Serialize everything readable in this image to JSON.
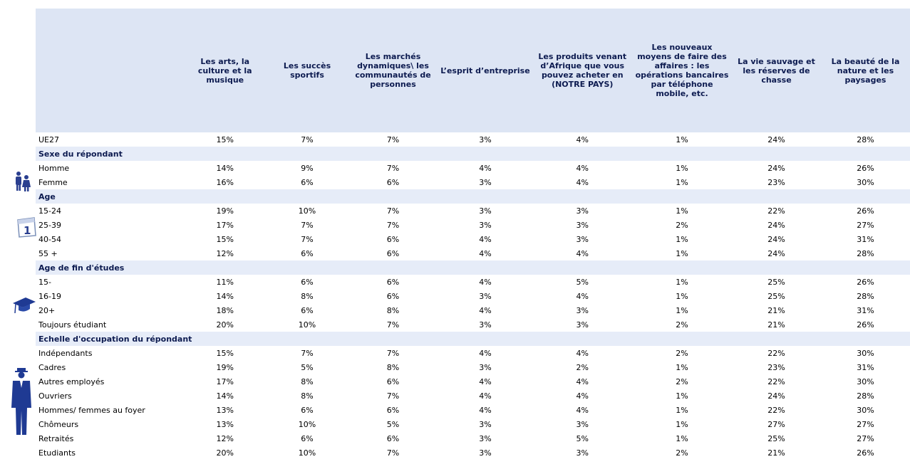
{
  "table": {
    "columns": [
      "Les arts, la culture et la musique",
      "Les succès sportifs",
      "Les marchés dynamiques\\ les communautés de personnes",
      "L’esprit d’entreprise",
      "Les produits venant d’Afrique que vous pouvez acheter en (NOTRE PAYS)",
      "Les nouveaux moyens de faire des affaires : les opérations bancaires par téléphone mobile, etc.",
      "La vie sauvage et les réserves de chasse",
      "La beauté de la nature et les paysages"
    ],
    "total": {
      "label": "UE27",
      "values": [
        "15%",
        "7%",
        "7%",
        "3%",
        "4%",
        "1%",
        "24%",
        "28%"
      ]
    },
    "sections": [
      {
        "title": "Sexe du répondant",
        "rows": [
          {
            "label": "Homme",
            "values": [
              "14%",
              "9%",
              "7%",
              "4%",
              "4%",
              "1%",
              "24%",
              "26%"
            ]
          },
          {
            "label": "Femme",
            "values": [
              "16%",
              "6%",
              "6%",
              "3%",
              "4%",
              "1%",
              "23%",
              "30%"
            ]
          }
        ]
      },
      {
        "title": "Age",
        "rows": [
          {
            "label": "15-24",
            "values": [
              "19%",
              "10%",
              "7%",
              "3%",
              "3%",
              "1%",
              "22%",
              "26%"
            ]
          },
          {
            "label": "25-39",
            "values": [
              "17%",
              "7%",
              "7%",
              "3%",
              "3%",
              "2%",
              "24%",
              "27%"
            ]
          },
          {
            "label": "40-54",
            "values": [
              "15%",
              "7%",
              "6%",
              "4%",
              "3%",
              "1%",
              "24%",
              "31%"
            ]
          },
          {
            "label": "55 +",
            "values": [
              "12%",
              "6%",
              "6%",
              "4%",
              "4%",
              "1%",
              "24%",
              "28%"
            ]
          }
        ]
      },
      {
        "title": "Age de fin d'études",
        "rows": [
          {
            "label": "15-",
            "values": [
              "11%",
              "6%",
              "6%",
              "4%",
              "5%",
              "1%",
              "25%",
              "26%"
            ]
          },
          {
            "label": "16-19",
            "values": [
              "14%",
              "8%",
              "6%",
              "3%",
              "4%",
              "1%",
              "25%",
              "28%"
            ]
          },
          {
            "label": "20+",
            "values": [
              "18%",
              "6%",
              "8%",
              "4%",
              "3%",
              "1%",
              "21%",
              "31%"
            ]
          },
          {
            "label": "Toujours étudiant",
            "values": [
              "20%",
              "10%",
              "7%",
              "3%",
              "3%",
              "2%",
              "21%",
              "26%"
            ]
          }
        ]
      },
      {
        "title": "Echelle d'occupation du répondant",
        "rows": [
          {
            "label": "Indépendants",
            "values": [
              "15%",
              "7%",
              "7%",
              "4%",
              "4%",
              "2%",
              "22%",
              "30%"
            ]
          },
          {
            "label": "Cadres",
            "values": [
              "19%",
              "5%",
              "8%",
              "3%",
              "2%",
              "1%",
              "23%",
              "31%"
            ]
          },
          {
            "label": "Autres employés",
            "values": [
              "17%",
              "8%",
              "6%",
              "4%",
              "4%",
              "2%",
              "22%",
              "30%"
            ]
          },
          {
            "label": "Ouvriers",
            "values": [
              "14%",
              "8%",
              "7%",
              "4%",
              "4%",
              "1%",
              "24%",
              "28%"
            ]
          },
          {
            "label": "Hommes/ femmes au foyer",
            "values": [
              "13%",
              "6%",
              "6%",
              "4%",
              "4%",
              "1%",
              "22%",
              "30%"
            ]
          },
          {
            "label": "Chômeurs",
            "values": [
              "13%",
              "10%",
              "5%",
              "3%",
              "3%",
              "1%",
              "27%",
              "27%"
            ]
          },
          {
            "label": "Retraités",
            "values": [
              "12%",
              "6%",
              "6%",
              "3%",
              "5%",
              "1%",
              "25%",
              "27%"
            ]
          },
          {
            "label": "Etudiants",
            "values": [
              "20%",
              "10%",
              "7%",
              "3%",
              "3%",
              "2%",
              "21%",
              "26%"
            ]
          }
        ]
      }
    ]
  }
}
